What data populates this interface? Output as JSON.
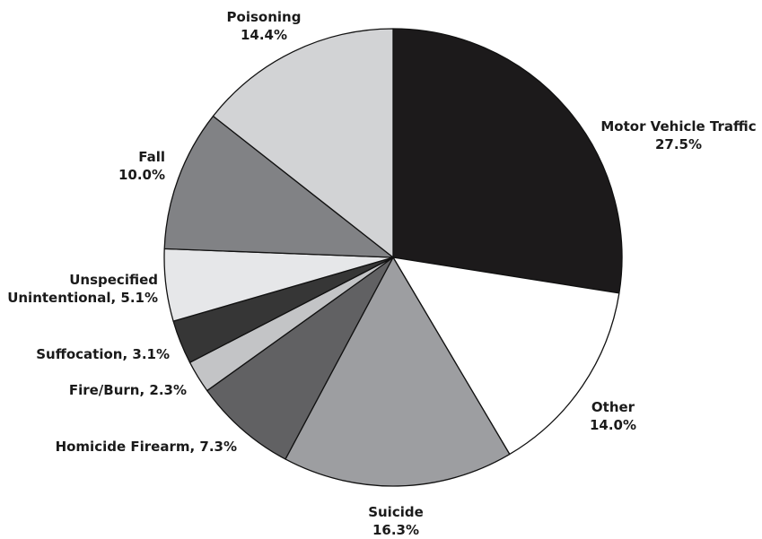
{
  "chart_data": {
    "type": "pie",
    "title": "",
    "slices": [
      {
        "name": "Motor Vehicle Traffic",
        "value": 27.5,
        "value_label": "27.5%",
        "color": "#1c1a1b"
      },
      {
        "name": "Other",
        "value": 14.0,
        "value_label": "14.0%",
        "color": "#ffffff"
      },
      {
        "name": "Suicide",
        "value": 16.3,
        "value_label": "16.3%",
        "color": "#9d9ea1"
      },
      {
        "name": "Homicide Firearm",
        "value": 7.3,
        "value_label": "7.3%",
        "color": "#616163"
      },
      {
        "name": "Fire/Burn",
        "value": 2.3,
        "value_label": "2.3%",
        "color": "#c3c4c6"
      },
      {
        "name": "Suffocation",
        "value": 3.1,
        "value_label": "3.1%",
        "color": "#363636"
      },
      {
        "name": "Unspecified Unintentional",
        "value": 5.1,
        "value_label": "5.1%",
        "color": "#e6e7e9"
      },
      {
        "name": "Fall",
        "value": 10.0,
        "value_label": "10.0%",
        "color": "#818285"
      },
      {
        "name": "Poisoning",
        "value": 14.4,
        "value_label": "14.4%",
        "color": "#d2d3d5"
      }
    ],
    "labels": [
      {
        "lines": [
          "Motor Vehicle Traffic",
          "27.5%"
        ]
      },
      {
        "lines": [
          "Other",
          "14.0%"
        ]
      },
      {
        "lines": [
          "Suicide",
          "16.3%"
        ]
      },
      {
        "lines": [
          "Homicide Firearm, 7.3%"
        ]
      },
      {
        "lines": [
          "Fire/Burn, 2.3%"
        ]
      },
      {
        "lines": [
          "Suffocation, 3.1%"
        ]
      },
      {
        "lines": [
          "Unspecified",
          "Unintentional, 5.1%"
        ]
      },
      {
        "lines": [
          "Fall",
          "10.0%"
        ]
      },
      {
        "lines": [
          "Poisoning",
          "14.4%"
        ]
      }
    ],
    "start": "12 o'clock",
    "direction": "clockwise",
    "legend": "none"
  }
}
